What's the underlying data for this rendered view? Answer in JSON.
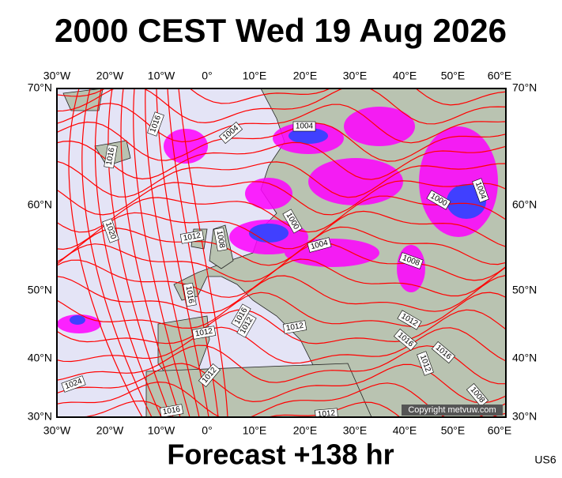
{
  "header": {
    "title": "2000 CEST Wed 19 Aug 2026"
  },
  "map": {
    "lon_labels": [
      "30°W",
      "20°W",
      "10°W",
      "0°",
      "10°E",
      "20°E",
      "30°E",
      "40°E",
      "50°E",
      "60°E"
    ],
    "lat_labels": [
      "70°N",
      "60°N",
      "50°N",
      "40°N",
      "30°N"
    ],
    "isobar_labels": [
      "1016",
      "1004",
      "1004",
      "1016",
      "1004",
      "1000",
      "1000",
      "1020",
      "1012",
      "1008",
      "1004",
      "1008",
      "1016",
      "1016",
      "1012",
      "1012",
      "1012",
      "1012",
      "1016",
      "1016",
      "1012",
      "1012",
      "1024",
      "1008",
      "1016",
      "1012"
    ],
    "copyright": "Copyright metvuw.com"
  },
  "footer": {
    "forecast": "Forecast +138 hr",
    "code": "US6"
  }
}
